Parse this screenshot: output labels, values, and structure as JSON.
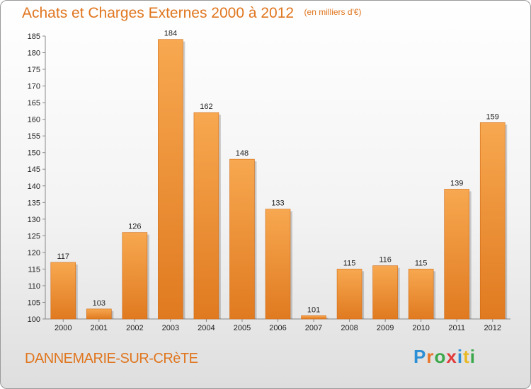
{
  "header": {
    "title": "Achats et Charges Externes 2000 à 2012",
    "subtitle": "(en milliers d'€)"
  },
  "footer": {
    "town": "DANNEMARIE-SUR-CRèTE",
    "logo_text": "Proxiti",
    "logo_letters": [
      "P",
      "r",
      "o",
      "x",
      "i",
      "t",
      "i"
    ],
    "logo_colors": [
      "#2c8fd6",
      "#e8762a",
      "#3aa84a",
      "#e23b3b",
      "#2c8fd6",
      "#e8b923",
      "#3aa84a"
    ]
  },
  "colors": {
    "bar_light": "#f7a850",
    "bar_dark": "#e07a20",
    "accent": "#e0761f"
  },
  "chart_data": {
    "type": "bar",
    "title": "Achats et Charges Externes 2000 à 2012",
    "subtitle": "(en milliers d'€)",
    "categories": [
      "2000",
      "2001",
      "2002",
      "2003",
      "2004",
      "2005",
      "2006",
      "2007",
      "2008",
      "2009",
      "2010",
      "2011",
      "2012"
    ],
    "values": [
      117,
      103,
      126,
      184,
      162,
      148,
      133,
      101,
      115,
      116,
      115,
      139,
      159
    ],
    "xlabel": "",
    "ylabel": "",
    "ylim": [
      100,
      185
    ],
    "yticks": [
      100,
      105,
      110,
      115,
      120,
      125,
      130,
      135,
      140,
      145,
      150,
      155,
      160,
      165,
      170,
      175,
      180,
      185
    ],
    "grid": false,
    "legend": "none"
  }
}
